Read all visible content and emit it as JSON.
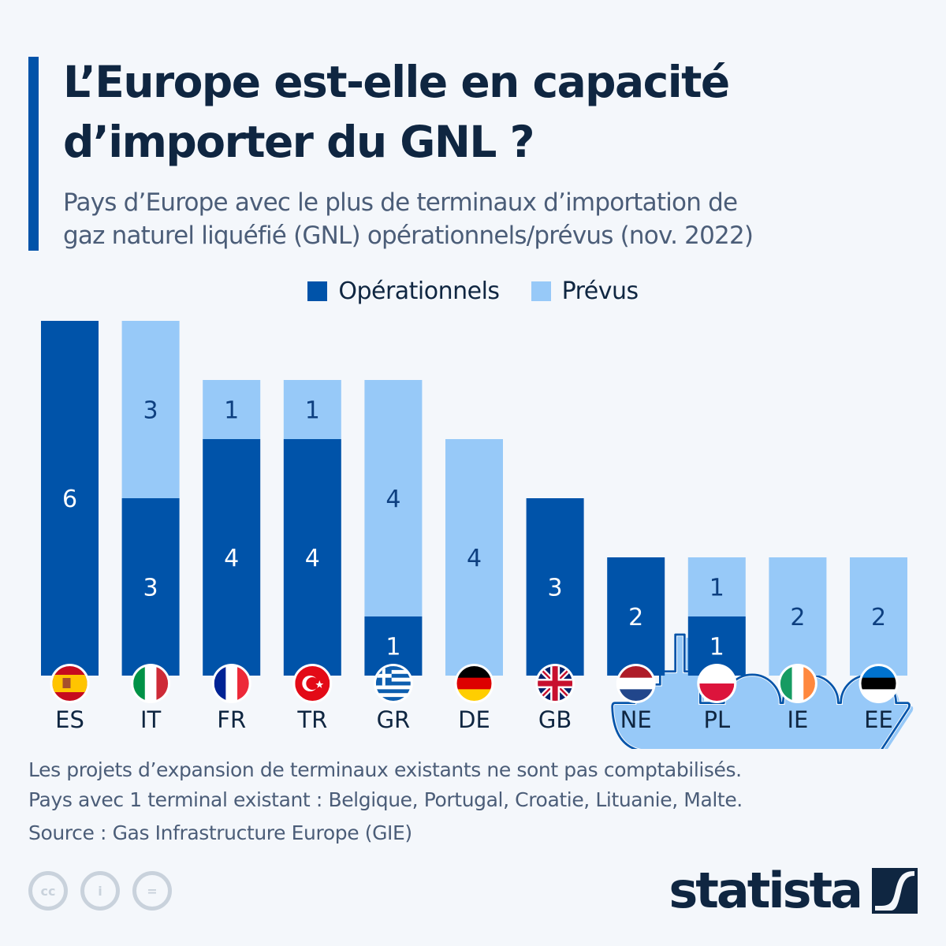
{
  "header": {
    "title_line1": "L’Europe est-elle en capacité",
    "title_line2": "d’importer du GNL ?",
    "subtitle_line1": "Pays d’Europe avec le plus de terminaux d’importation de",
    "subtitle_line2": "gaz naturel liquéfié (GNL) opérationnels/prévus (nov. 2022)"
  },
  "colors": {
    "accent": "#0053a9",
    "operational": "#0053a9",
    "planned": "#97c9f8",
    "background": "#f4f7fb",
    "title": "#0f2641",
    "label_on_dark": "#ffffff",
    "label_on_light": "#0d3f80"
  },
  "chart_data": {
    "type": "bar",
    "stacked": true,
    "title": "L’Europe est-elle en capacité d’importer du GNL ?",
    "xlabel": "",
    "ylabel": "",
    "ylim": [
      0,
      6
    ],
    "grid": false,
    "legend_position": "top-center",
    "categories": [
      "ES",
      "IT",
      "FR",
      "TR",
      "GR",
      "DE",
      "GB",
      "NE",
      "PL",
      "IE",
      "EE"
    ],
    "flags": [
      "spain-flag",
      "italy-flag",
      "france-flag",
      "turkey-flag",
      "greece-flag",
      "germany-flag",
      "uk-flag",
      "netherlands-flag",
      "poland-flag",
      "ireland-flag",
      "estonia-flag"
    ],
    "series": [
      {
        "name": "Opérationnels",
        "values": [
          6,
          3,
          4,
          4,
          1,
          0,
          3,
          2,
          1,
          0,
          0
        ]
      },
      {
        "name": "Prévus",
        "values": [
          0,
          3,
          1,
          1,
          4,
          4,
          0,
          0,
          1,
          2,
          2
        ]
      }
    ]
  },
  "legend": {
    "items": [
      {
        "label": "Opérationnels"
      },
      {
        "label": "Prévus"
      }
    ]
  },
  "illustration": {
    "icon": "lng-tanker-ship-icon"
  },
  "notes": {
    "line1": "Les projets d’expansion de terminaux existants ne sont pas comptabilisés.",
    "line2": "Pays avec 1 terminal existant : Belgique, Portugal, Croatie, Lituanie, Malte.",
    "source": "Source : Gas Infrastructure Europe (GIE)"
  },
  "footer": {
    "license_icons": [
      "cc",
      "i",
      "="
    ],
    "brand": "statista"
  }
}
